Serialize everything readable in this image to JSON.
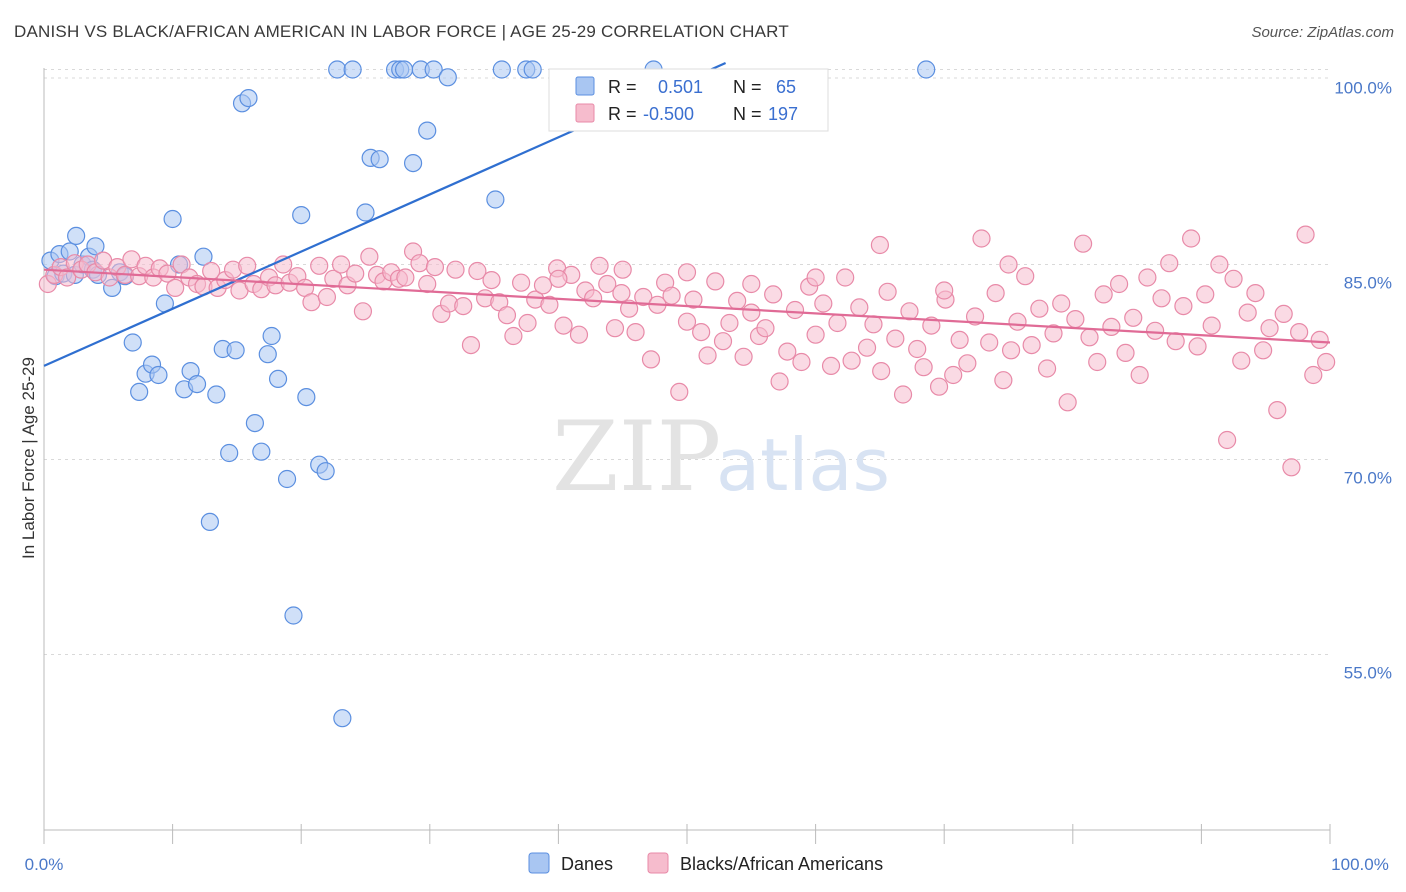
{
  "header": {
    "title": "DANISH VS BLACK/AFRICAN AMERICAN IN LABOR FORCE | AGE 25-29 CORRELATION CHART",
    "source": "Source: ZipAtlas.com"
  },
  "watermark": {
    "zip": "ZIP",
    "atlas": "atlas"
  },
  "legend": {
    "rows": [
      {
        "r_label": "R =",
        "r_value": "0.501",
        "n_label": "N =",
        "n_value": "65",
        "color": "#9dbcef"
      },
      {
        "r_label": "R =",
        "r_value": "-0.500",
        "n_label": "N =",
        "n_value": "197",
        "color": "#f4a7bf"
      }
    ]
  },
  "bottom_legend": [
    {
      "label": "Danes",
      "color": "#9dbcef"
    },
    {
      "label": "Blacks/African Americans",
      "color": "#f4a7bf"
    }
  ],
  "chart_data": {
    "type": "scatter",
    "title": "DANISH VS BLACK/AFRICAN AMERICAN IN LABOR FORCE | AGE 25-29 CORRELATION CHART",
    "xlabel": "",
    "ylabel": "In Labor Force | Age 25-29",
    "xlim": [
      0,
      100
    ],
    "ylim": [
      41.5,
      101.5
    ],
    "x_tick_labels": [
      "0.0%",
      "100.0%"
    ],
    "y_ticks": [
      100,
      85,
      70,
      55
    ],
    "y_tick_labels": [
      "100.0%",
      "85.0%",
      "70.0%",
      "55.0%"
    ],
    "grid": true,
    "legend_position": "top-center",
    "series": [
      {
        "name": "Danes",
        "color": "#5b8fe0",
        "fill": "#a9c6f2",
        "trend": {
          "x": [
            0,
            53
          ],
          "y": [
            77.2,
            100.5
          ],
          "color": "#2f6fd0"
        },
        "points": [
          [
            0.5,
            85.3
          ],
          [
            0.9,
            84.1
          ],
          [
            1.2,
            85.8
          ],
          [
            1.5,
            84.3
          ],
          [
            2.0,
            86.0
          ],
          [
            2.4,
            84.2
          ],
          [
            2.5,
            87.2
          ],
          [
            3.0,
            85.0
          ],
          [
            3.5,
            85.6
          ],
          [
            3.8,
            84.6
          ],
          [
            4.0,
            86.4
          ],
          [
            4.2,
            84.2
          ],
          [
            5.3,
            83.2
          ],
          [
            5.9,
            84.4
          ],
          [
            6.3,
            84.1
          ],
          [
            6.9,
            79.0
          ],
          [
            7.4,
            75.2
          ],
          [
            7.9,
            76.6
          ],
          [
            8.4,
            77.3
          ],
          [
            8.9,
            76.5
          ],
          [
            9.4,
            82.0
          ],
          [
            10.0,
            88.5
          ],
          [
            10.5,
            85.0
          ],
          [
            10.9,
            75.4
          ],
          [
            11.4,
            76.8
          ],
          [
            11.9,
            75.8
          ],
          [
            12.4,
            85.6
          ],
          [
            12.9,
            65.2
          ],
          [
            13.4,
            75.0
          ],
          [
            13.9,
            78.5
          ],
          [
            14.4,
            70.5
          ],
          [
            14.9,
            78.4
          ],
          [
            15.4,
            97.4
          ],
          [
            15.9,
            97.8
          ],
          [
            16.4,
            72.8
          ],
          [
            16.9,
            70.6
          ],
          [
            17.4,
            78.1
          ],
          [
            17.7,
            79.5
          ],
          [
            18.2,
            76.2
          ],
          [
            18.9,
            68.5
          ],
          [
            19.4,
            58.0
          ],
          [
            20.0,
            88.8
          ],
          [
            20.4,
            74.8
          ],
          [
            21.4,
            69.6
          ],
          [
            21.9,
            69.1
          ],
          [
            22.8,
            100.0
          ],
          [
            23.2,
            50.1
          ],
          [
            24.0,
            100.0
          ],
          [
            25.0,
            89.0
          ],
          [
            25.4,
            93.2
          ],
          [
            26.1,
            93.1
          ],
          [
            27.3,
            100.0
          ],
          [
            27.7,
            100.0
          ],
          [
            28.0,
            100.0
          ],
          [
            28.7,
            92.8
          ],
          [
            29.3,
            100.0
          ],
          [
            29.8,
            95.3
          ],
          [
            30.3,
            100.0
          ],
          [
            31.4,
            99.4
          ],
          [
            35.1,
            90.0
          ],
          [
            35.6,
            100.0
          ],
          [
            37.5,
            100.0
          ],
          [
            38.0,
            100.0
          ],
          [
            47.4,
            100.0
          ],
          [
            68.6,
            100.0
          ]
        ]
      },
      {
        "name": "Blacks/African Americans",
        "color": "#e88aa8",
        "fill": "#f6bccd",
        "trend": {
          "x": [
            0,
            100
          ],
          "y": [
            84.6,
            79.0
          ],
          "color": "#e06b96"
        },
        "points": [
          [
            0.3,
            83.5
          ],
          [
            0.8,
            84.2
          ],
          [
            1.3,
            84.8
          ],
          [
            1.8,
            84.0
          ],
          [
            2.4,
            85.1
          ],
          [
            2.9,
            84.6
          ],
          [
            3.4,
            85.0
          ],
          [
            4.0,
            84.4
          ],
          [
            4.6,
            85.3
          ],
          [
            5.1,
            84.0
          ],
          [
            5.7,
            84.8
          ],
          [
            6.3,
            84.2
          ],
          [
            6.8,
            85.4
          ],
          [
            7.4,
            84.1
          ],
          [
            7.9,
            84.9
          ],
          [
            8.5,
            84.0
          ],
          [
            9.0,
            84.7
          ],
          [
            9.6,
            84.3
          ],
          [
            10.2,
            83.2
          ],
          [
            10.7,
            85.0
          ],
          [
            11.3,
            84.0
          ],
          [
            11.9,
            83.5
          ],
          [
            12.4,
            83.3
          ],
          [
            13.0,
            84.5
          ],
          [
            13.5,
            83.2
          ],
          [
            14.1,
            83.8
          ],
          [
            14.7,
            84.6
          ],
          [
            15.2,
            83.0
          ],
          [
            15.8,
            84.9
          ],
          [
            16.3,
            83.5
          ],
          [
            16.9,
            83.1
          ],
          [
            17.5,
            84.0
          ],
          [
            18.0,
            83.4
          ],
          [
            18.6,
            85.0
          ],
          [
            19.1,
            83.6
          ],
          [
            19.7,
            84.1
          ],
          [
            20.3,
            83.2
          ],
          [
            20.8,
            82.1
          ],
          [
            21.4,
            84.9
          ],
          [
            22.0,
            82.5
          ],
          [
            22.5,
            83.9
          ],
          [
            23.1,
            85.0
          ],
          [
            23.6,
            83.4
          ],
          [
            24.2,
            84.3
          ],
          [
            24.8,
            81.4
          ],
          [
            25.3,
            85.6
          ],
          [
            25.9,
            84.2
          ],
          [
            26.4,
            83.7
          ],
          [
            27.0,
            84.4
          ],
          [
            27.6,
            83.9
          ],
          [
            28.1,
            84.0
          ],
          [
            28.7,
            86.0
          ],
          [
            29.2,
            85.1
          ],
          [
            29.8,
            83.5
          ],
          [
            30.4,
            84.8
          ],
          [
            30.9,
            81.2
          ],
          [
            31.5,
            82.0
          ],
          [
            32.0,
            84.6
          ],
          [
            32.6,
            81.8
          ],
          [
            33.2,
            78.8
          ],
          [
            33.7,
            84.5
          ],
          [
            34.3,
            82.4
          ],
          [
            34.8,
            83.8
          ],
          [
            35.4,
            82.1
          ],
          [
            36.0,
            81.1
          ],
          [
            36.5,
            79.5
          ],
          [
            37.1,
            83.6
          ],
          [
            37.6,
            80.5
          ],
          [
            38.2,
            82.3
          ],
          [
            38.8,
            83.4
          ],
          [
            39.3,
            81.9
          ],
          [
            39.9,
            84.7
          ],
          [
            40.4,
            80.3
          ],
          [
            41.0,
            84.2
          ],
          [
            41.6,
            79.6
          ],
          [
            42.1,
            83.0
          ],
          [
            42.7,
            82.4
          ],
          [
            43.2,
            84.9
          ],
          [
            43.8,
            83.5
          ],
          [
            44.4,
            80.1
          ],
          [
            44.9,
            82.8
          ],
          [
            45.5,
            81.6
          ],
          [
            46.0,
            79.8
          ],
          [
            46.6,
            82.5
          ],
          [
            47.2,
            77.7
          ],
          [
            47.7,
            81.9
          ],
          [
            48.3,
            83.6
          ],
          [
            48.8,
            82.6
          ],
          [
            49.4,
            75.2
          ],
          [
            50.0,
            80.6
          ],
          [
            50.5,
            82.3
          ],
          [
            51.1,
            79.8
          ],
          [
            51.6,
            78.0
          ],
          [
            52.2,
            83.7
          ],
          [
            52.8,
            79.1
          ],
          [
            53.3,
            80.5
          ],
          [
            53.9,
            82.2
          ],
          [
            54.4,
            77.9
          ],
          [
            55.0,
            81.3
          ],
          [
            55.6,
            79.5
          ],
          [
            56.1,
            80.1
          ],
          [
            56.7,
            82.7
          ],
          [
            57.2,
            76.0
          ],
          [
            57.8,
            78.3
          ],
          [
            58.4,
            81.5
          ],
          [
            58.9,
            77.5
          ],
          [
            59.5,
            83.3
          ],
          [
            60.0,
            79.6
          ],
          [
            60.6,
            82.0
          ],
          [
            61.2,
            77.2
          ],
          [
            61.7,
            80.5
          ],
          [
            62.3,
            84.0
          ],
          [
            62.8,
            77.6
          ],
          [
            63.4,
            81.7
          ],
          [
            64.0,
            78.6
          ],
          [
            64.5,
            80.4
          ],
          [
            65.1,
            76.8
          ],
          [
            65.6,
            82.9
          ],
          [
            66.2,
            79.3
          ],
          [
            66.8,
            75.0
          ],
          [
            67.3,
            81.4
          ],
          [
            67.9,
            78.5
          ],
          [
            68.4,
            77.1
          ],
          [
            69.0,
            80.3
          ],
          [
            69.6,
            75.6
          ],
          [
            70.1,
            82.3
          ],
          [
            70.7,
            76.5
          ],
          [
            71.2,
            79.2
          ],
          [
            71.8,
            77.4
          ],
          [
            72.4,
            81.0
          ],
          [
            72.9,
            87.0
          ],
          [
            73.5,
            79.0
          ],
          [
            74.0,
            82.8
          ],
          [
            74.6,
            76.1
          ],
          [
            75.2,
            78.4
          ],
          [
            75.7,
            80.6
          ],
          [
            76.3,
            84.1
          ],
          [
            76.8,
            78.8
          ],
          [
            77.4,
            81.6
          ],
          [
            78.0,
            77.0
          ],
          [
            78.5,
            79.7
          ],
          [
            79.1,
            82.0
          ],
          [
            79.6,
            74.4
          ],
          [
            80.2,
            80.8
          ],
          [
            80.8,
            86.6
          ],
          [
            81.3,
            79.4
          ],
          [
            81.9,
            77.5
          ],
          [
            82.4,
            82.7
          ],
          [
            83.0,
            80.2
          ],
          [
            83.6,
            83.5
          ],
          [
            84.1,
            78.2
          ],
          [
            84.7,
            80.9
          ],
          [
            85.2,
            76.5
          ],
          [
            85.8,
            84.0
          ],
          [
            86.4,
            79.9
          ],
          [
            86.9,
            82.4
          ],
          [
            87.5,
            85.1
          ],
          [
            88.0,
            79.1
          ],
          [
            88.6,
            81.8
          ],
          [
            89.2,
            87.0
          ],
          [
            89.7,
            78.7
          ],
          [
            90.3,
            82.7
          ],
          [
            90.8,
            80.3
          ],
          [
            91.4,
            85.0
          ],
          [
            92.0,
            71.5
          ],
          [
            92.5,
            83.9
          ],
          [
            93.1,
            77.6
          ],
          [
            93.6,
            81.3
          ],
          [
            94.2,
            82.8
          ],
          [
            94.8,
            78.4
          ],
          [
            95.3,
            80.1
          ],
          [
            95.9,
            73.8
          ],
          [
            96.4,
            81.2
          ],
          [
            97.0,
            69.4
          ],
          [
            97.6,
            79.8
          ],
          [
            98.1,
            87.3
          ],
          [
            98.7,
            76.5
          ],
          [
            99.2,
            79.2
          ],
          [
            99.7,
            77.5
          ],
          [
            65.0,
            86.5
          ],
          [
            70.0,
            83.0
          ],
          [
            75.0,
            85.0
          ],
          [
            60.0,
            84.0
          ],
          [
            55.0,
            83.5
          ],
          [
            50.0,
            84.4
          ],
          [
            45.0,
            84.6
          ],
          [
            40.0,
            83.9
          ]
        ]
      }
    ]
  }
}
